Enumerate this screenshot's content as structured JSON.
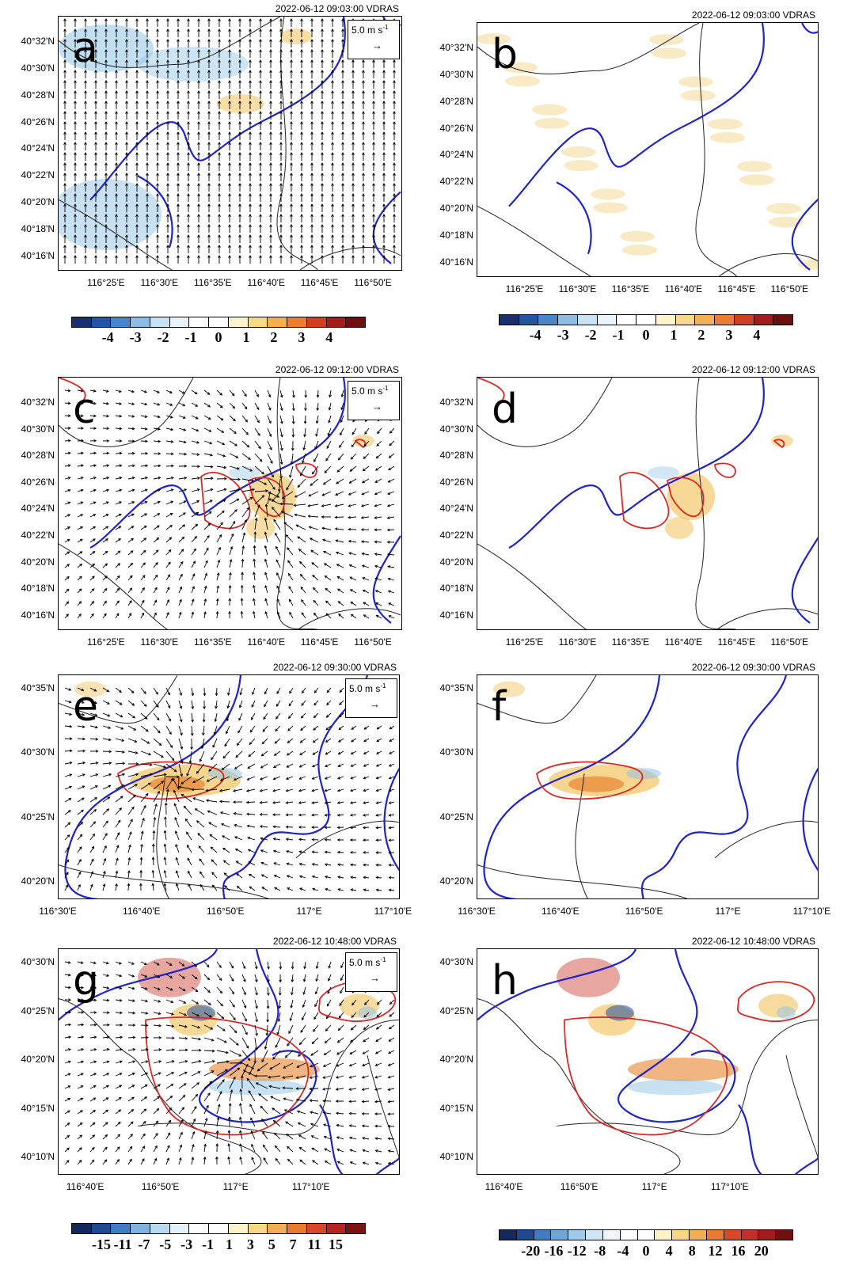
{
  "panels": [
    {
      "id": "a",
      "timestamp": "2022-06-12 09:03:00 VDRAS",
      "yticks": [
        "40°32'N",
        "40°30'N",
        "40°28'N",
        "40°26'N",
        "40°24'N",
        "40°22'N",
        "40°20'N",
        "40°18'N",
        "40°16'N"
      ],
      "xticks": [
        "116°25'E",
        "116°30'E",
        "116°35'E",
        "116°40'E",
        "116°45'E",
        "116°50'E"
      ],
      "has_vectors": true,
      "ref_label": "5.0 m s",
      "ref_exp": "-1"
    },
    {
      "id": "b",
      "timestamp": "2022-06-12 09:03:00 VDRAS",
      "yticks": [
        "40°32'N",
        "40°30'N",
        "40°28'N",
        "40°26'N",
        "40°24'N",
        "40°22'N",
        "40°20'N",
        "40°18'N",
        "40°16'N"
      ],
      "xticks": [
        "116°25'E",
        "116°30'E",
        "116°35'E",
        "116°40'E",
        "116°45'E",
        "116°50'E"
      ],
      "has_vectors": false
    },
    {
      "id": "c",
      "timestamp": "2022-06-12 09:12:00 VDRAS",
      "yticks": [
        "40°32'N",
        "40°30'N",
        "40°28'N",
        "40°26'N",
        "40°24'N",
        "40°22'N",
        "40°20'N",
        "40°18'N",
        "40°16'N"
      ],
      "xticks": [
        "116°25'E",
        "116°30'E",
        "116°35'E",
        "116°40'E",
        "116°45'E",
        "116°50'E"
      ],
      "has_vectors": true,
      "ref_label": "5.0 m s",
      "ref_exp": "-1"
    },
    {
      "id": "d",
      "timestamp": "2022-06-12 09:12:00 VDRAS",
      "yticks": [
        "40°32'N",
        "40°30'N",
        "40°28'N",
        "40°26'N",
        "40°24'N",
        "40°22'N",
        "40°20'N",
        "40°18'N",
        "40°16'N"
      ],
      "xticks": [
        "116°25'E",
        "116°30'E",
        "116°35'E",
        "116°40'E",
        "116°45'E",
        "116°50'E"
      ],
      "has_vectors": false
    },
    {
      "id": "e",
      "timestamp": "2022-06-12 09:30:00 VDRAS",
      "yticks": [
        "40°35'N",
        "40°30'N",
        "40°25'N",
        "40°20'N"
      ],
      "xticks": [
        "116°30'E",
        "116°40'E",
        "116°50'E",
        "117°E",
        "117°10'E"
      ],
      "has_vectors": true,
      "ref_label": "5.0 m s",
      "ref_exp": "-1"
    },
    {
      "id": "f",
      "timestamp": "2022-06-12 09:30:00 VDRAS",
      "yticks": [
        "40°35'N",
        "40°30'N",
        "40°25'N",
        "40°20'N"
      ],
      "xticks": [
        "116°30'E",
        "116°40'E",
        "116°50'E",
        "117°E",
        "117°10'E"
      ],
      "has_vectors": false
    },
    {
      "id": "g",
      "timestamp": "2022-06-12 10:48:00 VDRAS",
      "yticks": [
        "40°30'N",
        "40°25'N",
        "40°20'N",
        "40°15'N",
        "40°10'N"
      ],
      "xticks": [
        "116°40'E",
        "116°50'E",
        "117°E",
        "117°10'E"
      ],
      "has_vectors": true,
      "ref_label": "5.0 m s",
      "ref_exp": "-1"
    },
    {
      "id": "h",
      "timestamp": "2022-06-12 10:48:00 VDRAS",
      "yticks": [
        "40°30'N",
        "40°25'N",
        "40°20'N",
        "40°15'N",
        "40°10'N"
      ],
      "xticks": [
        "116°40'E",
        "116°50'E",
        "117°E",
        "117°10'E"
      ],
      "has_vectors": false
    }
  ],
  "colorbars": [
    {
      "id": "cb-a",
      "labels": [
        "-4",
        "-3",
        "-2",
        "-1",
        "0",
        "1",
        "2",
        "3",
        "4"
      ]
    },
    {
      "id": "cb-b",
      "labels": [
        "-4",
        "-3",
        "-2",
        "-1",
        "0",
        "1",
        "2",
        "3",
        "4"
      ]
    },
    {
      "id": "cb-g",
      "labels": [
        "-15",
        "-11",
        "-7",
        "-5",
        "-3",
        "-1",
        "1",
        "3",
        "5",
        "7",
        "11",
        "15"
      ]
    },
    {
      "id": "cb-h",
      "labels": [
        "-20",
        "-16",
        "-12",
        "-8",
        "-4",
        "0",
        "4",
        "8",
        "12",
        "16",
        "20"
      ]
    }
  ],
  "colors": {
    "blue_contour": "#1f23c8",
    "red_contour": "#d62a2a",
    "boundary": "#222222",
    "warm": "#f3c76a",
    "cool": "#8fc3e6"
  }
}
